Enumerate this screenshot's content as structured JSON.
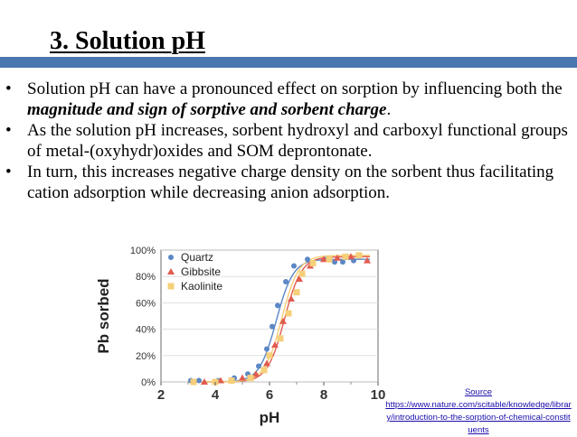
{
  "slide": {
    "title_number": "3.",
    "title_text": " Solution pH"
  },
  "bullets": [
    {
      "marker": "•",
      "parts": [
        "Solution pH can have a pronounced effect on sorption by influencing both the ",
        "magnitude and sign of sorptive and sorbent charge",
        "."
      ]
    },
    {
      "marker": "•",
      "text": "As the solution pH increases, sorbent hydroxyl and carboxyl functional groups of metal-(oxyhydr)oxides and SOM deprontonate."
    },
    {
      "marker": "•",
      "text": "In turn, this increases negative charge density on the sorbent thus facilitating cation adsorption while decreasing anion adsorption."
    }
  ],
  "chart_data": {
    "type": "scatter",
    "title": "",
    "xlabel": "pH",
    "ylabel": "Pb sorbed",
    "xlim": [
      2,
      10
    ],
    "ylim": [
      0,
      100
    ],
    "x_ticks": [
      "2",
      "4",
      "6",
      "8",
      "10"
    ],
    "y_ticks": [
      "0%",
      "20%",
      "40%",
      "60%",
      "80%",
      "100%"
    ],
    "legend_position": "top-left",
    "series": [
      {
        "name": "Quartz",
        "marker": "circle",
        "color": "#5b87c5",
        "points": [
          [
            3.1,
            1
          ],
          [
            3.4,
            1
          ],
          [
            4.1,
            1
          ],
          [
            4.7,
            3
          ],
          [
            5.2,
            6
          ],
          [
            5.6,
            12
          ],
          [
            5.9,
            25
          ],
          [
            6.1,
            42
          ],
          [
            6.3,
            58
          ],
          [
            6.6,
            76
          ],
          [
            6.9,
            88
          ],
          [
            7.4,
            93
          ],
          [
            8.1,
            93
          ],
          [
            8.4,
            91
          ],
          [
            8.7,
            91
          ],
          [
            9.1,
            92
          ]
        ]
      },
      {
        "name": "Gibbsite",
        "marker": "triangle",
        "color": "#e05c4f",
        "points": [
          [
            3.6,
            0
          ],
          [
            4.2,
            1
          ],
          [
            5.0,
            3
          ],
          [
            5.5,
            6
          ],
          [
            5.9,
            14
          ],
          [
            6.2,
            28
          ],
          [
            6.5,
            46
          ],
          [
            6.8,
            63
          ],
          [
            7.1,
            78
          ],
          [
            7.5,
            88
          ],
          [
            8.0,
            93
          ],
          [
            8.5,
            94
          ],
          [
            9.0,
            95
          ],
          [
            9.6,
            92
          ]
        ]
      },
      {
        "name": "Kaolinite",
        "marker": "square",
        "color": "#f5cf7a",
        "points": [
          [
            3.2,
            0
          ],
          [
            4.0,
            0
          ],
          [
            4.6,
            1
          ],
          [
            5.3,
            3
          ],
          [
            5.8,
            9
          ],
          [
            6.0,
            20
          ],
          [
            6.4,
            33
          ],
          [
            6.7,
            52
          ],
          [
            7.0,
            68
          ],
          [
            7.2,
            82
          ],
          [
            7.6,
            90
          ],
          [
            8.2,
            93
          ],
          [
            8.8,
            95
          ],
          [
            9.3,
            96
          ]
        ]
      }
    ],
    "fit_curves": [
      {
        "name": "Quartz",
        "color": "#5b87c5",
        "midpoint_ph": 6.25,
        "plateau": 93
      },
      {
        "name": "Gibbsite",
        "color": "#e05c4f",
        "midpoint_ph": 6.55,
        "plateau": 95
      },
      {
        "name": "Kaolinite",
        "color": "#f5cf7a",
        "midpoint_ph": 6.45,
        "plateau": 96
      }
    ]
  },
  "source": {
    "label": "Source",
    "url": "https://www.nature.com/scitable/knowledge/library/introduction-to-the-sorption-of-chemical-constituents"
  }
}
